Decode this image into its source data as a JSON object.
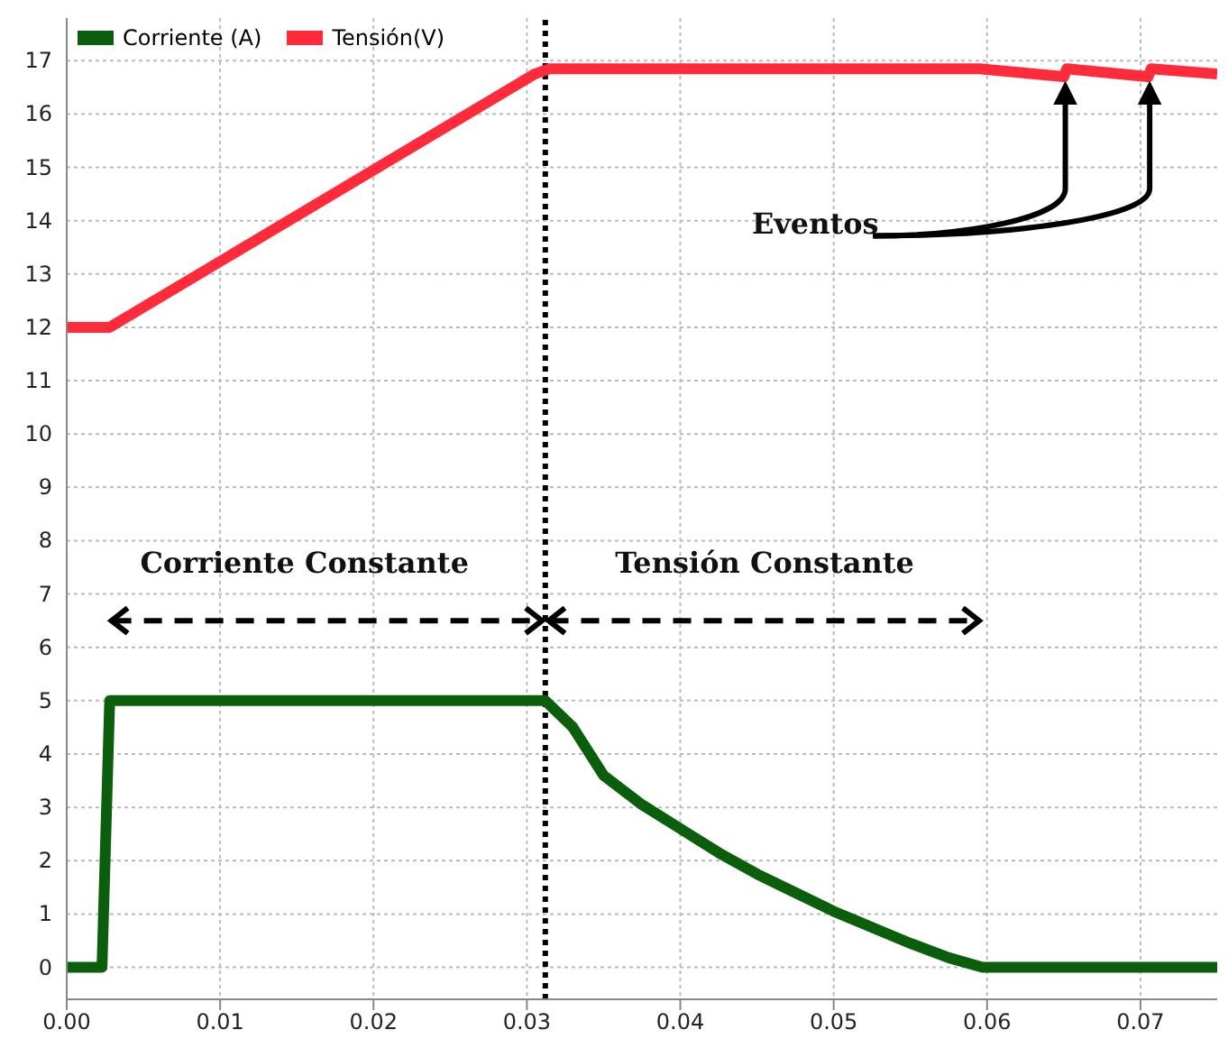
{
  "chart_data": {
    "type": "line",
    "xlim": [
      0,
      0.075
    ],
    "ylim": [
      -0.6,
      17.8
    ],
    "xticks": [
      {
        "value": 0,
        "label": "0.00"
      },
      {
        "value": 0.01,
        "label": "0.01"
      },
      {
        "value": 0.02,
        "label": "0.02"
      },
      {
        "value": 0.03,
        "label": "0.03"
      },
      {
        "value": 0.04,
        "label": "0.04"
      },
      {
        "value": 0.05,
        "label": "0.05"
      },
      {
        "value": 0.06,
        "label": "0.06"
      },
      {
        "value": 0.07,
        "label": "0.07"
      }
    ],
    "yticks": [
      0,
      1,
      2,
      3,
      4,
      5,
      6,
      7,
      8,
      9,
      10,
      11,
      12,
      13,
      14,
      15,
      16,
      17
    ],
    "grid": true,
    "legend": "top left",
    "marker": "none",
    "line_style": "solid",
    "series": [
      {
        "name": "Corriente (A)",
        "color": "#0b5e0b",
        "x": [
          0,
          0.0023,
          0.0028,
          0.0312,
          0.033,
          0.035,
          0.0375,
          0.04,
          0.0425,
          0.045,
          0.0475,
          0.05,
          0.0525,
          0.055,
          0.0575,
          0.0597,
          0.075
        ],
        "values": [
          0,
          0,
          5,
          5,
          4.5,
          3.6,
          3.05,
          2.6,
          2.15,
          1.75,
          1.4,
          1.05,
          0.75,
          0.45,
          0.18,
          0,
          0
        ]
      },
      {
        "name": "Tensión(V)",
        "color": "#ff2a3a",
        "x": [
          0,
          0.0028,
          0.0305,
          0.0315,
          0.0595,
          0.065,
          0.0652,
          0.0705,
          0.0707,
          0.075
        ],
        "values": [
          12,
          12,
          16.75,
          16.85,
          16.85,
          16.7,
          16.85,
          16.7,
          16.85,
          16.75
        ]
      }
    ],
    "ref_lines": [
      {
        "axis": "x",
        "value": 0.0312,
        "line_style": "dotted",
        "color": "#000000"
      }
    ],
    "annotations": [
      "Corriente Constante",
      "Tensión Constante",
      "Eventos"
    ]
  }
}
